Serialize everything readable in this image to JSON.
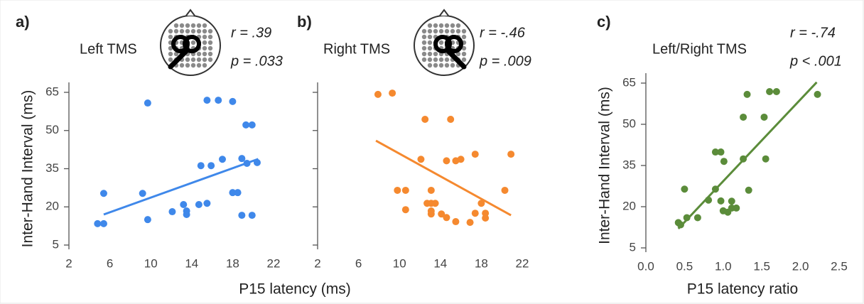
{
  "chart_data": [
    {
      "type": "scatter",
      "panel_label": "a)",
      "title": "Left TMS",
      "annotations": [
        "r = .39",
        "p = .033"
      ],
      "y_label": "Inter-Hand Interval (ms)",
      "x_label": "P15 latency (ms)",
      "xlim": [
        2,
        22
      ],
      "xticks": [
        2,
        6,
        10,
        14,
        18,
        22
      ],
      "ylim": [
        5,
        65
      ],
      "yticks": [
        5,
        20,
        35,
        50,
        65
      ],
      "color": "#3f88ea",
      "x": [
        5.4,
        4.8,
        5.4,
        9.2,
        9.7,
        9.7,
        12.1,
        13.2,
        13.5,
        13.5,
        14.9,
        15.9,
        14.7,
        15.5,
        15.5,
        16.6,
        17.0,
        18.0,
        18.0,
        18.5,
        18.9,
        18.9,
        19.3,
        19.9,
        19.4,
        19.9,
        20.4
      ],
      "y": [
        25.3,
        13.4,
        13.4,
        25.3,
        60.8,
        15.0,
        18.1,
        20.9,
        18.4,
        17.0,
        36.2,
        36.2,
        20.9,
        21.4,
        61.9,
        61.9,
        38.7,
        61.4,
        25.6,
        25.6,
        39.0,
        16.7,
        52.2,
        52.2,
        37.1,
        16.7,
        37.4
      ],
      "trend": {
        "x": [
          5.4,
          20.5
        ],
        "y": [
          17.0,
          38.8
        ]
      }
    },
    {
      "type": "scatter",
      "panel_label": "b)",
      "title": "Right TMS",
      "annotations": [
        "r = -.46",
        "p = .009"
      ],
      "xlim": [
        2,
        22
      ],
      "xticks": [
        2,
        6,
        10,
        14,
        18,
        22
      ],
      "ylim": [
        5,
        65
      ],
      "yticks": [
        5,
        20,
        35,
        50,
        65
      ],
      "color": "#f5892f",
      "x": [
        7.9,
        9.3,
        9.8,
        10.6,
        10.6,
        12.5,
        12.1,
        12.7,
        13.1,
        13.1,
        13.1,
        13.1,
        13.5,
        14.1,
        14.6,
        15.0,
        14.6,
        15.5,
        16.0,
        15.5,
        16.9,
        17.4,
        17.4,
        18.0,
        18.4,
        18.4,
        20.3,
        20.9
      ],
      "y": [
        64.2,
        64.7,
        26.5,
        26.5,
        18.9,
        54.4,
        38.7,
        21.4,
        26.5,
        21.4,
        18.4,
        17.2,
        21.4,
        17.2,
        38.1,
        54.4,
        15.8,
        38.1,
        38.7,
        14.2,
        13.9,
        40.7,
        17.5,
        21.4,
        17.5,
        15.6,
        26.5,
        40.7
      ],
      "trend": {
        "x": [
          7.7,
          20.9
        ],
        "y": [
          46.0,
          16.7
        ]
      }
    },
    {
      "type": "scatter",
      "panel_label": "c)",
      "title": "Left/Right TMS",
      "annotations": [
        "r = -.74",
        "p < .001"
      ],
      "y_label": "Inter-Hand Interval (ms)",
      "x_label": "P15 latency ratio",
      "xlim": [
        0,
        2.5
      ],
      "xticks": [
        {
          "value": 0,
          "label": "0.0"
        },
        0.5,
        {
          "value": 1,
          "label": "1.0"
        },
        1.5,
        {
          "value": 2,
          "label": "2.0"
        },
        2.5
      ],
      "ylim": [
        5,
        65
      ],
      "yticks": [
        5,
        20,
        35,
        50,
        65
      ],
      "color": "#5b8c3a",
      "x": [
        0.42,
        0.45,
        0.5,
        0.53,
        0.67,
        0.81,
        0.9,
        0.9,
        0.97,
        0.97,
        1.01,
        1.0,
        1.06,
        1.11,
        1.11,
        1.17,
        1.31,
        1.26,
        1.26,
        1.33,
        1.53,
        1.55,
        1.6,
        1.69,
        2.22
      ],
      "y": [
        14.2,
        13.4,
        26.4,
        16.0,
        16.0,
        22.4,
        26.4,
        39.9,
        39.9,
        22.1,
        36.5,
        18.5,
        18.0,
        19.5,
        22.0,
        19.5,
        60.9,
        37.4,
        52.6,
        26.0,
        52.6,
        37.4,
        61.9,
        61.9,
        60.9
      ],
      "trend": {
        "x": [
          0.42,
          2.21
        ],
        "y": [
          12.0,
          65.3
        ]
      }
    }
  ]
}
